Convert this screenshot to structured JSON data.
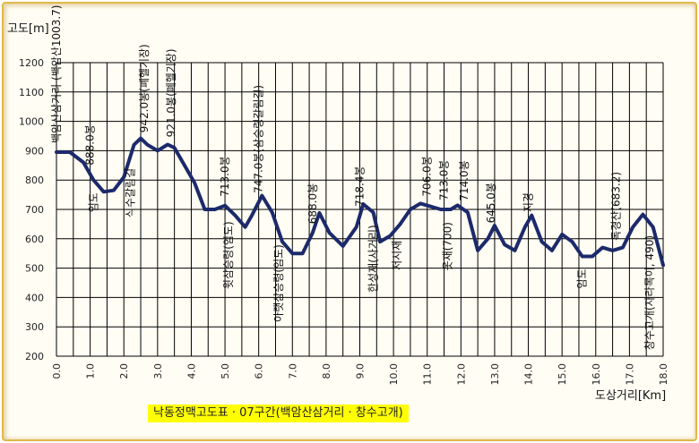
{
  "chart_data": {
    "type": "line",
    "title": "낙동정맥고도표 · 07구간(백암산삼거리 · 창수고개)",
    "xlabel": "도상거리[Km]",
    "ylabel": "고도[m]",
    "xlim": [
      0,
      18
    ],
    "ylim": [
      200,
      1200
    ],
    "xticks": [
      "0.0",
      "1.0",
      "2.0",
      "3.0",
      "4.0",
      "5.0",
      "6.0",
      "7.0",
      "8.0",
      "9.0",
      "10.0",
      "11.0",
      "12.0",
      "13.0",
      "14.0",
      "15.0",
      "16.0",
      "17.0",
      "18.0"
    ],
    "yticks": [
      "200",
      "300",
      "400",
      "500",
      "600",
      "700",
      "800",
      "900",
      "1000",
      "1100",
      "1200"
    ],
    "grid": true,
    "line_color": "#1c2a6b",
    "series": [
      {
        "x": [
          0.0,
          0.4,
          0.8,
          1.1,
          1.4,
          1.7,
          2.0,
          2.3,
          2.5,
          2.7,
          3.0,
          3.3,
          3.5,
          3.8,
          4.1,
          4.4,
          4.7,
          5.0,
          5.3,
          5.6,
          5.8,
          6.1,
          6.4,
          6.7,
          7.0,
          7.3,
          7.6,
          7.8,
          8.1,
          8.5,
          8.9,
          9.1,
          9.4,
          9.6,
          9.9,
          10.2,
          10.5,
          10.8,
          11.1,
          11.4,
          11.7,
          11.9,
          12.2,
          12.5,
          12.8,
          13.0,
          13.3,
          13.6,
          13.9,
          14.1,
          14.4,
          14.7,
          15.0,
          15.3,
          15.6,
          15.9,
          16.2,
          16.5,
          16.8,
          17.1,
          17.4,
          17.7,
          18.0
        ],
        "y": [
          895,
          895,
          860,
          800,
          760,
          765,
          810,
          920,
          942,
          920,
          900,
          921,
          910,
          850,
          790,
          700,
          700,
          713,
          680,
          640,
          680,
          747,
          690,
          590,
          550,
          550,
          620,
          688,
          620,
          575,
          640,
          718,
          690,
          590,
          610,
          650,
          700,
          720,
          710,
          700,
          700,
          714,
          690,
          560,
          600,
          645,
          580,
          560,
          640,
          680,
          590,
          560,
          615,
          590,
          540,
          540,
          570,
          560,
          570,
          640,
          683,
          640,
          510
        ]
      }
    ],
    "annotations": [
      {
        "x": 0.0,
        "text": "백암산삼거리 (백암산1003.7)"
      },
      {
        "x": 1.0,
        "text": "888.0봉"
      },
      {
        "x": 1.1,
        "text": "임도"
      },
      {
        "x": 2.2,
        "text": "식수갈림길"
      },
      {
        "x": 2.6,
        "text": "942.0봉(폐헬기장)"
      },
      {
        "x": 3.4,
        "text": "921.0봉(폐헬기장)"
      },
      {
        "x": 5.0,
        "text": "713.0봉"
      },
      {
        "x": 5.1,
        "text": "윗삼승령(임도)"
      },
      {
        "x": 6.0,
        "text": "747.0봉(삼승령갈림길)"
      },
      {
        "x": 6.6,
        "text": "아랫삼승령(임도)"
      },
      {
        "x": 7.6,
        "text": "688.0봉"
      },
      {
        "x": 9.0,
        "text": "718.4봉"
      },
      {
        "x": 9.4,
        "text": "한성재(사거리)"
      },
      {
        "x": 10.1,
        "text": "저시재"
      },
      {
        "x": 11.0,
        "text": "706.0봉"
      },
      {
        "x": 11.5,
        "text": "713.0봉"
      },
      {
        "x": 11.6,
        "text": "옷재(700)"
      },
      {
        "x": 12.1,
        "text": "714.0봉"
      },
      {
        "x": 12.9,
        "text": "645.0봉"
      },
      {
        "x": 14.0,
        "text": "지경"
      },
      {
        "x": 15.6,
        "text": "임도"
      },
      {
        "x": 16.6,
        "text": "독경산(683.2)"
      },
      {
        "x": 17.6,
        "text": "창수고개(자라목이, 490)"
      }
    ]
  }
}
